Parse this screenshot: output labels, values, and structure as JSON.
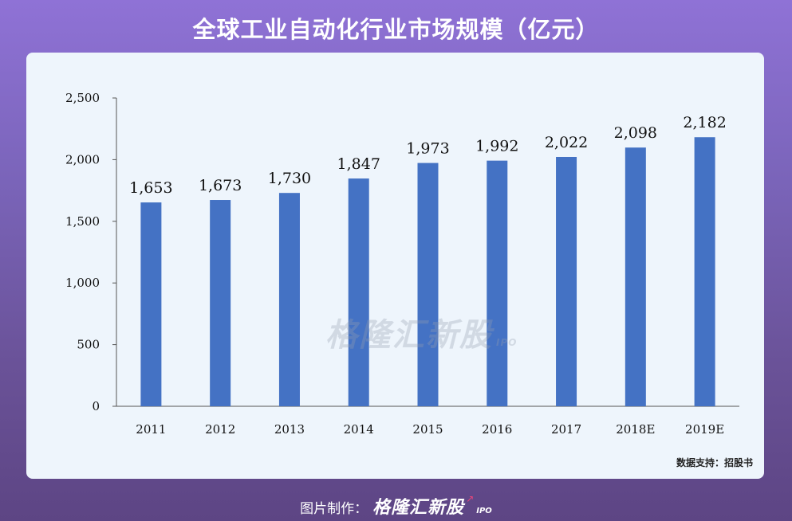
{
  "header": {
    "title": "全球工业自动化行业市场规模（亿元）"
  },
  "source_note": "数据支持：招股书",
  "watermark": {
    "text": "格隆汇新股",
    "sub": "IPO"
  },
  "footer": {
    "prefix": "图片制作：",
    "brand": "格隆汇新股",
    "brand_sub": "IPO"
  },
  "colors": {
    "bar": "#4472c4",
    "card": "#eef5fc"
  },
  "chart_data": {
    "type": "bar",
    "categories": [
      "2011",
      "2012",
      "2013",
      "2014",
      "2015",
      "2016",
      "2017",
      "2018E",
      "2019E"
    ],
    "values": [
      1653,
      1673,
      1730,
      1847,
      1973,
      1992,
      2022,
      2098,
      2182
    ],
    "value_labels": [
      "1,653",
      "1,673",
      "1,730",
      "1,847",
      "1,973",
      "1,992",
      "2,022",
      "2,098",
      "2,182"
    ],
    "yticks": [
      0,
      500,
      1000,
      1500,
      2000,
      2500
    ],
    "ytick_labels": [
      "0",
      "500",
      "1,000",
      "1,500",
      "2,000",
      "2,500"
    ],
    "ylim": [
      0,
      2500
    ],
    "xlabel": "",
    "ylabel": "",
    "grid": false,
    "legend": "none"
  }
}
